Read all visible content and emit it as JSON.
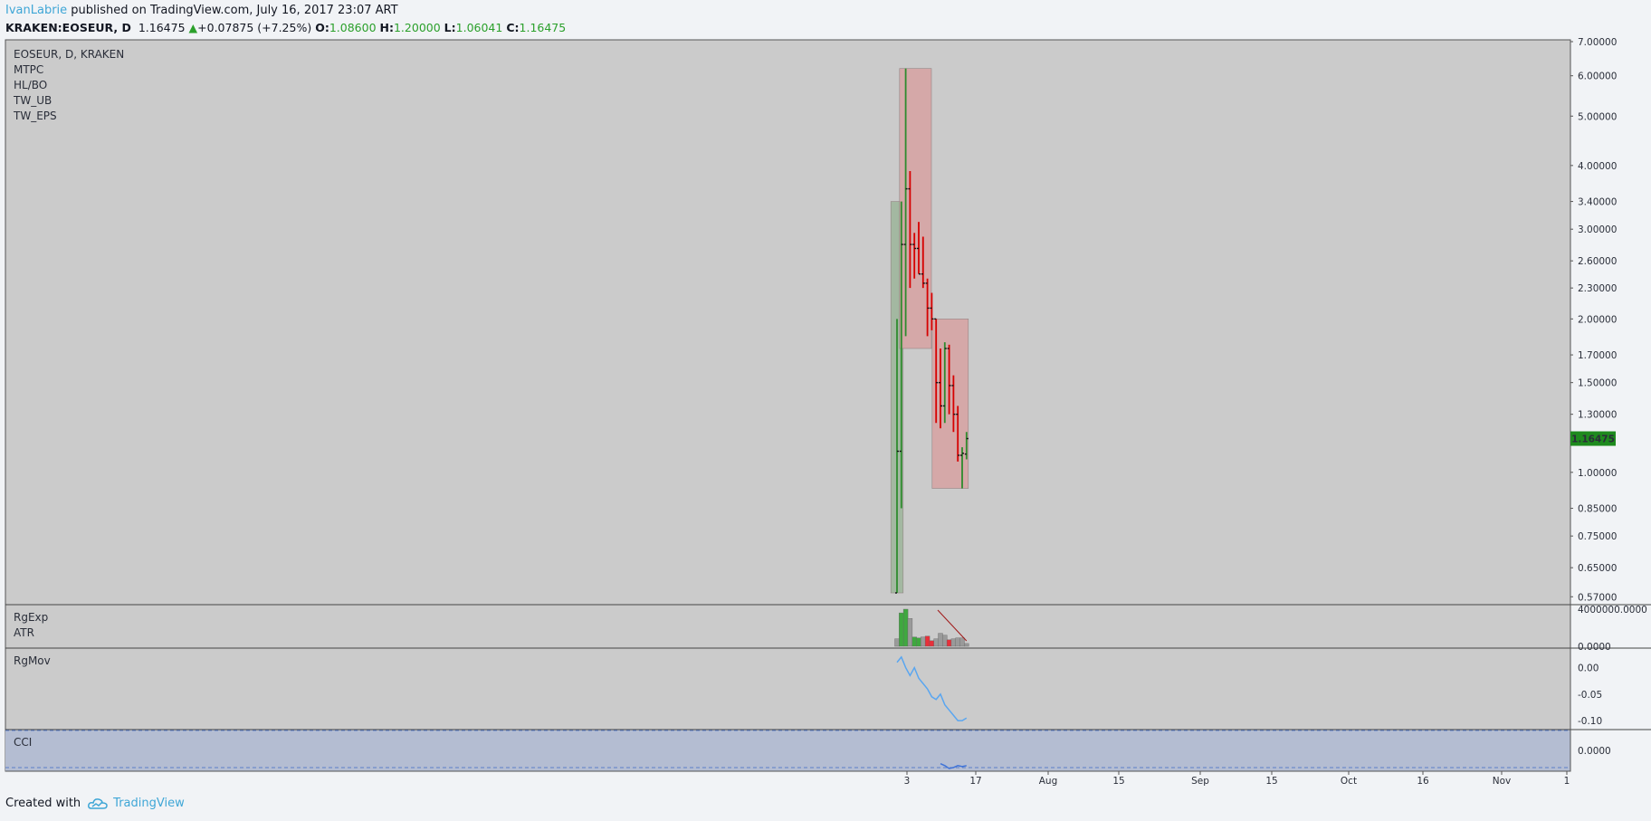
{
  "header": {
    "author": "IvanLabrie",
    "published": "published on TradingView.com, July 16, 2017 23:07 ART",
    "symbol": "KRAKEN:EOSEUR, D",
    "last": "1.16475",
    "change": "+0.07875 (+7.25%)",
    "o_label": "O:",
    "o_val": "1.08600",
    "h_label": "H:",
    "h_val": "1.20000",
    "l_label": "L:",
    "l_val": "1.06041",
    "c_label": "C:",
    "c_val": "1.16475"
  },
  "legend": [
    "EOSEUR, D, KRAKEN",
    "MTPC",
    "HL/BO",
    "TW_UB",
    "TW_EPS"
  ],
  "colors": {
    "up": "#2e8b2e",
    "down": "#d60000",
    "neutral": "#222222",
    "pane_bg": "#cbcbcb",
    "cci_bg": "#b4bdd2",
    "price_badge": "#1e8a1e",
    "green_box": "#9db59a",
    "red_box": "#d7a3a3",
    "line": "#5aa6f0"
  },
  "chart_data": [
    {
      "type": "bar",
      "title": "EOSEUR, D, KRAKEN",
      "scale": "log",
      "ylim": [
        0.55,
        7.0
      ],
      "y_ticks": [
        "7.00000",
        "6.00000",
        "5.00000",
        "4.00000",
        "3.40000",
        "3.00000",
        "2.60000",
        "2.30000",
        "2.00000",
        "1.70000",
        "1.50000",
        "1.30000",
        "1.00000",
        "0.85000",
        "0.75000",
        "0.65000",
        "0.57000"
      ],
      "last_price_label": "1.16475",
      "x_ticks": [
        "3",
        "17",
        "Aug",
        "15",
        "Sep",
        "15",
        "Oct",
        "16",
        "Nov",
        "1"
      ],
      "ohlc": [
        {
          "d": 1,
          "o": 0.58,
          "h": 2.0,
          "l": 0.58,
          "c": 1.1
        },
        {
          "d": 2,
          "o": 1.1,
          "h": 3.4,
          "l": 0.85,
          "c": 2.8
        },
        {
          "d": 3,
          "o": 2.8,
          "h": 6.2,
          "l": 1.85,
          "c": 3.6
        },
        {
          "d": 4,
          "o": 3.6,
          "h": 3.9,
          "l": 2.3,
          "c": 2.8
        },
        {
          "d": 5,
          "o": 2.8,
          "h": 2.95,
          "l": 2.4,
          "c": 2.75
        },
        {
          "d": 6,
          "o": 2.75,
          "h": 3.1,
          "l": 2.45,
          "c": 2.45
        },
        {
          "d": 7,
          "o": 2.45,
          "h": 2.9,
          "l": 2.3,
          "c": 2.35
        },
        {
          "d": 8,
          "o": 2.35,
          "h": 2.4,
          "l": 1.85,
          "c": 2.1
        },
        {
          "d": 9,
          "o": 2.1,
          "h": 2.25,
          "l": 1.9,
          "c": 2.0
        },
        {
          "d": 10,
          "o": 2.0,
          "h": 2.0,
          "l": 1.25,
          "c": 1.5
        },
        {
          "d": 11,
          "o": 1.5,
          "h": 1.75,
          "l": 1.22,
          "c": 1.35
        },
        {
          "d": 12,
          "o": 1.35,
          "h": 1.8,
          "l": 1.25,
          "c": 1.75
        },
        {
          "d": 13,
          "o": 1.75,
          "h": 1.78,
          "l": 1.3,
          "c": 1.48
        },
        {
          "d": 14,
          "o": 1.48,
          "h": 1.55,
          "l": 1.2,
          "c": 1.3
        },
        {
          "d": 15,
          "o": 1.3,
          "h": 1.35,
          "l": 1.05,
          "c": 1.08
        },
        {
          "d": 16,
          "o": 1.08,
          "h": 1.12,
          "l": 0.93,
          "c": 1.09
        },
        {
          "d": 17,
          "o": 1.086,
          "h": 1.2,
          "l": 1.06041,
          "c": 1.16475
        }
      ],
      "zones": [
        {
          "color": "green_box",
          "d_from": 0,
          "d_to": 2,
          "lo": 0.58,
          "hi": 3.4
        },
        {
          "color": "red_box",
          "d_from": 2,
          "d_to": 8.5,
          "lo": 1.75,
          "hi": 6.2
        },
        {
          "color": "red_box",
          "d_from": 9.5,
          "d_to": 17,
          "lo": 0.93,
          "hi": 2.0
        }
      ]
    },
    {
      "type": "bar",
      "title": "RgExp",
      "subtitle": "ATR",
      "y_ticks": [
        "4000000.0000",
        "0.0000"
      ],
      "ylim": [
        0,
        4000000
      ],
      "bars": [
        {
          "v": 800000,
          "c": "gray"
        },
        {
          "v": 3600000,
          "c": "green"
        },
        {
          "v": 4000000,
          "c": "green"
        },
        {
          "v": 3000000,
          "c": "gray"
        },
        {
          "v": 1000000,
          "c": "green"
        },
        {
          "v": 900000,
          "c": "green"
        },
        {
          "v": 1000000,
          "c": "gray"
        },
        {
          "v": 1100000,
          "c": "red"
        },
        {
          "v": 600000,
          "c": "red"
        },
        {
          "v": 800000,
          "c": "gray"
        },
        {
          "v": 1400000,
          "c": "gray"
        },
        {
          "v": 1200000,
          "c": "gray"
        },
        {
          "v": 700000,
          "c": "red"
        },
        {
          "v": 800000,
          "c": "gray"
        },
        {
          "v": 900000,
          "c": "gray"
        },
        {
          "v": 900000,
          "c": "gray"
        },
        {
          "v": 300000,
          "c": "gray"
        }
      ]
    },
    {
      "type": "line",
      "title": "RgMov",
      "y_ticks": [
        "0.00",
        "-0.05",
        "-0.10"
      ],
      "ylim": [
        -0.11,
        0.03
      ],
      "values": [
        0.01,
        0.02,
        0.0,
        -0.015,
        0.0,
        -0.02,
        -0.03,
        -0.04,
        -0.055,
        -0.06,
        -0.05,
        -0.07,
        -0.08,
        -0.09,
        -0.1,
        -0.1,
        -0.095
      ]
    },
    {
      "type": "line",
      "title": "CCI",
      "y_ticks": [
        "0.0000"
      ],
      "ylim": [
        -100,
        100
      ],
      "values": [
        -70,
        -80,
        -95,
        -90,
        -80,
        -85,
        -80
      ]
    }
  ],
  "footer": {
    "created_with": "Created with",
    "brand": "TradingView"
  }
}
